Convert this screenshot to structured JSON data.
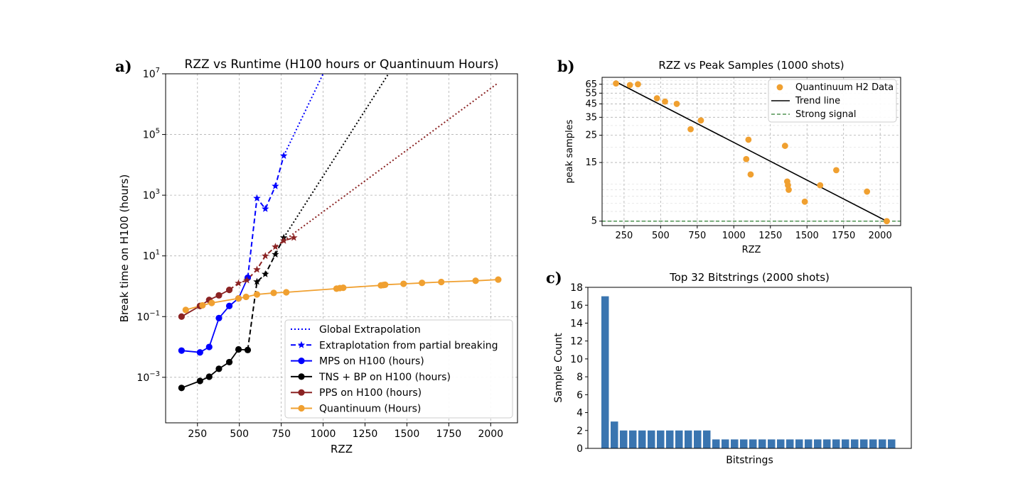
{
  "chart_data": [
    {
      "panel": "a)",
      "type": "line",
      "title": "RZZ vs Runtime (H100 hours or Quantinuum Hours)",
      "xlabel": "RZZ",
      "ylabel": "Break time on H100 (hours)",
      "xlim": [
        60,
        2160
      ],
      "ylim_log10": [
        -4.5,
        7
      ],
      "yscale": "log",
      "grid": true,
      "xticks": [
        "250",
        "500",
        "750",
        "1000",
        "1250",
        "1500",
        "1750",
        "2000"
      ],
      "xtick_values": [
        250,
        500,
        750,
        1000,
        1250,
        1500,
        1750,
        2000
      ],
      "yticks": [
        {
          "base": "10",
          "exp": "−3",
          "value": -3
        },
        {
          "base": "10",
          "exp": "−1",
          "value": -1
        },
        {
          "base": "10",
          "exp": "1",
          "value": 1
        },
        {
          "base": "10",
          "exp": "3",
          "value": 3
        },
        {
          "base": "10",
          "exp": "5",
          "value": 5
        },
        {
          "base": "10",
          "exp": "7",
          "value": 7
        }
      ],
      "legend_position": "lower-right",
      "legend": [
        {
          "label": "Global Extrapolation",
          "color": "#0000ff",
          "style": "dotted",
          "marker": "none"
        },
        {
          "label": "Extraplotation from partial breaking",
          "color": "#0000ff",
          "style": "dashed",
          "marker": "star"
        },
        {
          "label": "MPS on H100 (hours)",
          "color": "#0000ff",
          "style": "solid",
          "marker": "circle"
        },
        {
          "label": "TNS + BP on H100 (hours)",
          "color": "#000000",
          "style": "solid",
          "marker": "circle"
        },
        {
          "label": "PPS on H100 (hours)",
          "color": "#8b2323",
          "style": "solid",
          "marker": "circle"
        },
        {
          "label": "Quantinuum (Hours)",
          "color": "#f0a030",
          "style": "solid",
          "marker": "circle"
        }
      ],
      "series": [
        {
          "name": "MPS on H100 (hours)",
          "color": "#0000ff",
          "style": "solid",
          "marker": "circle",
          "points": [
            [
              155,
              -2.12
            ],
            [
              265,
              -2.18
            ],
            [
              320,
              -2.0
            ],
            [
              378,
              -1.05
            ],
            [
              440,
              -0.65
            ],
            [
              495,
              -0.4
            ],
            [
              550,
              0.28
            ]
          ]
        },
        {
          "name": "TNS + BP on H100 (hours)",
          "color": "#000000",
          "style": "solid",
          "marker": "circle",
          "points": [
            [
              155,
              -3.35
            ],
            [
              265,
              -3.12
            ],
            [
              320,
              -2.98
            ],
            [
              378,
              -2.72
            ],
            [
              440,
              -2.5
            ],
            [
              495,
              -2.08
            ],
            [
              550,
              -2.1
            ]
          ]
        },
        {
          "name": "PPS on H100 (hours)",
          "color": "#8b2323",
          "style": "solid",
          "marker": "circle",
          "points": [
            [
              155,
              -1.0
            ],
            [
              265,
              -0.65
            ],
            [
              320,
              -0.45
            ],
            [
              378,
              -0.3
            ],
            [
              440,
              -0.12
            ]
          ]
        },
        {
          "name": "Quantinuum (Hours)",
          "color": "#f0a030",
          "style": "solid",
          "marker": "circle",
          "points": [
            [
              180,
              -0.78
            ],
            [
              280,
              -0.63
            ],
            [
              335,
              -0.55
            ],
            [
              495,
              -0.4
            ],
            [
              540,
              -0.35
            ],
            [
              605,
              -0.27
            ],
            [
              705,
              -0.22
            ],
            [
              780,
              -0.2
            ],
            [
              1080,
              -0.08
            ],
            [
              1100,
              -0.06
            ],
            [
              1120,
              -0.05
            ],
            [
              1345,
              0.03
            ],
            [
              1360,
              0.04
            ],
            [
              1370,
              0.05
            ],
            [
              1480,
              0.08
            ],
            [
              1590,
              0.11
            ],
            [
              1705,
              0.14
            ],
            [
              1910,
              0.18
            ],
            [
              2045,
              0.22
            ]
          ]
        },
        {
          "name": "MPS partial",
          "color": "#0000ff",
          "style": "dashed",
          "marker": "star",
          "points": [
            [
              550,
              0.28
            ],
            [
              605,
              2.9
            ],
            [
              655,
              2.55
            ],
            [
              715,
              3.3
            ],
            [
              765,
              4.3
            ]
          ]
        },
        {
          "name": "TNS partial",
          "color": "#000000",
          "style": "dashed",
          "marker": "star",
          "points": [
            [
              550,
              -2.1
            ],
            [
              605,
              0.15
            ],
            [
              655,
              0.4
            ],
            [
              715,
              1.05
            ],
            [
              765,
              1.6
            ]
          ]
        },
        {
          "name": "PPS partial",
          "color": "#8b2323",
          "style": "dashed",
          "marker": "star",
          "points": [
            [
              440,
              -0.12
            ],
            [
              495,
              0.1
            ],
            [
              545,
              0.2
            ],
            [
              605,
              0.55
            ],
            [
              655,
              1.0
            ],
            [
              715,
              1.3
            ],
            [
              765,
              1.5
            ],
            [
              825,
              1.6
            ]
          ]
        },
        {
          "name": "MPS global",
          "color": "#0000ff",
          "style": "dotted",
          "marker": "none",
          "points": [
            [
              765,
              4.3
            ],
            [
              1000,
              7.0
            ]
          ]
        },
        {
          "name": "TNS global",
          "color": "#000000",
          "style": "dotted",
          "marker": "none",
          "points": [
            [
              765,
              1.6
            ],
            [
              1390,
              7.0
            ]
          ]
        },
        {
          "name": "PPS global",
          "color": "#8b2323",
          "style": "dotted",
          "marker": "none",
          "points": [
            [
              765,
              1.5
            ],
            [
              2045,
              6.7
            ]
          ]
        }
      ]
    },
    {
      "panel": "b)",
      "type": "scatter",
      "title": "RZZ vs Peak Samples (1000 shots)",
      "xlabel": "RZZ",
      "ylabel": "peak samples",
      "yscale": "log",
      "xlim": [
        100,
        2140
      ],
      "ylim": [
        4.6,
        74
      ],
      "grid": true,
      "xticks": [
        "250",
        "500",
        "750",
        "1000",
        "1250",
        "1500",
        "1750",
        "2000"
      ],
      "xtick_values": [
        250,
        500,
        750,
        1000,
        1250,
        1500,
        1750,
        2000
      ],
      "yticks": [
        "5",
        "15",
        "25",
        "35",
        "45",
        "55",
        "65"
      ],
      "ytick_values": [
        5,
        15,
        25,
        35,
        45,
        55,
        65
      ],
      "legend_position": "top-right",
      "legend": [
        {
          "label": "Quantinuum H2 Data",
          "color": "#f0a030",
          "kind": "dot"
        },
        {
          "label": "Trend line",
          "color": "#000000",
          "kind": "line"
        },
        {
          "label": "Strong signal",
          "color": "#2e7d32",
          "kind": "dashed"
        }
      ],
      "series": [
        {
          "name": "Quantinuum H2 Data",
          "color": "#f0a030",
          "points": [
            [
              195,
              66
            ],
            [
              290,
              64
            ],
            [
              345,
              65
            ],
            [
              475,
              50
            ],
            [
              530,
              47
            ],
            [
              610,
              45
            ],
            [
              705,
              28
            ],
            [
              775,
              33
            ],
            [
              1085,
              16
            ],
            [
              1100,
              23
            ],
            [
              1115,
              12
            ],
            [
              1350,
              20.5
            ],
            [
              1365,
              10.5
            ],
            [
              1370,
              9.8
            ],
            [
              1375,
              9.0
            ],
            [
              1485,
              7.2
            ],
            [
              1590,
              9.8
            ],
            [
              1700,
              13
            ],
            [
              1910,
              8.7
            ],
            [
              2045,
              5
            ]
          ]
        },
        {
          "name": "Trend line",
          "color": "#000000",
          "points": [
            [
              195,
              68
            ],
            [
              2045,
              5
            ]
          ]
        },
        {
          "name": "Strong signal",
          "color": "#2e7d32",
          "y": 5
        }
      ]
    },
    {
      "panel": "c)",
      "type": "bar",
      "title": "Top 32 Bitstrings (2000 shots)",
      "xlabel": "Bitstrings",
      "ylabel": "Sample Count",
      "ylim": [
        0,
        18
      ],
      "yticks": [
        "0",
        "2",
        "4",
        "6",
        "8",
        "10",
        "12",
        "14",
        "16",
        "18"
      ],
      "ytick_values": [
        0,
        2,
        4,
        6,
        8,
        10,
        12,
        14,
        16,
        18
      ],
      "color": "#3a75b0",
      "values": [
        17,
        3,
        2,
        2,
        2,
        2,
        2,
        2,
        2,
        2,
        2,
        2,
        1,
        1,
        1,
        1,
        1,
        1,
        1,
        1,
        1,
        1,
        1,
        1,
        1,
        1,
        1,
        1,
        1,
        1,
        1,
        1
      ]
    }
  ]
}
